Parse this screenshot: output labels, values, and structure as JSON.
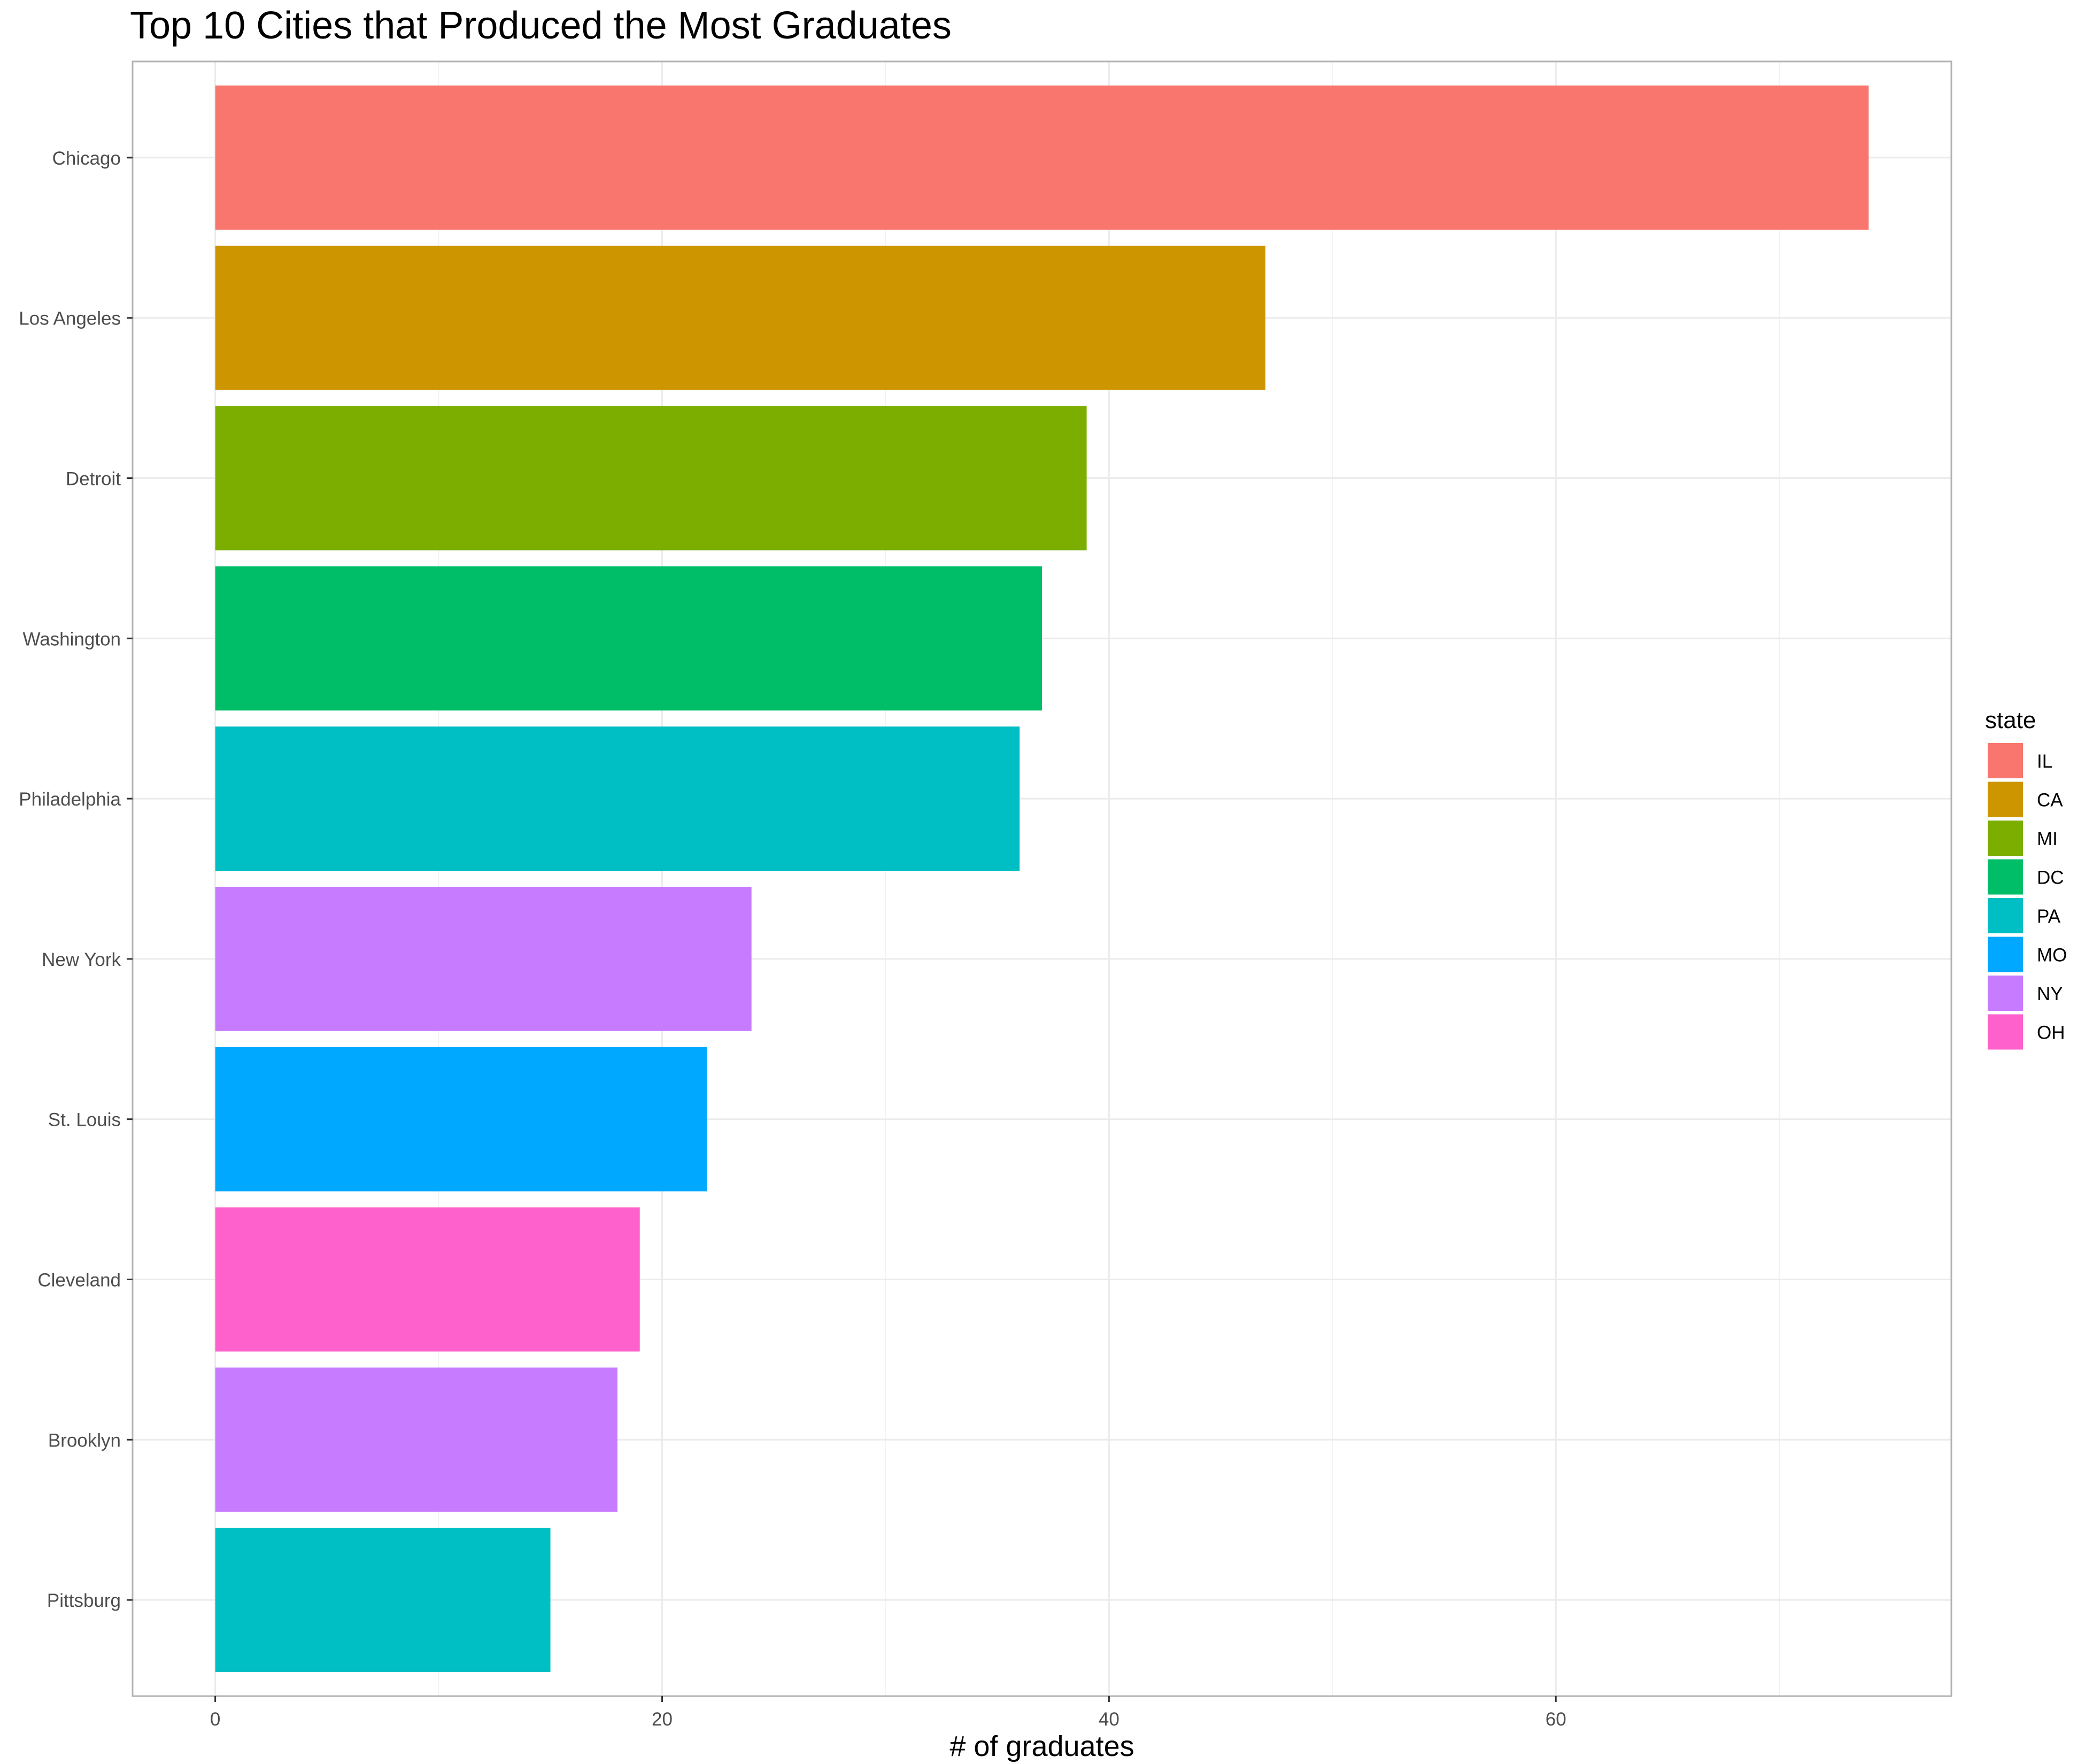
{
  "chart_data": {
    "type": "bar",
    "orientation": "horizontal",
    "title": "Top 10 Cities that Produced the Most Graduates",
    "xlabel": "# of graduates",
    "ylabel": "",
    "xlim": [
      -3.7,
      77.7
    ],
    "xticks": [
      0,
      20,
      40,
      60
    ],
    "grid": true,
    "legend_position": "right",
    "legend_title": "state",
    "categories": [
      "Chicago",
      "Los Angeles",
      "Detroit",
      "Washington",
      "Philadelphia",
      "New York",
      "St. Louis",
      "Cleveland",
      "Brooklyn",
      "Pittsburg"
    ],
    "values": [
      74,
      47,
      39,
      37,
      36,
      24,
      22,
      19,
      18,
      15
    ],
    "groups": [
      "IL",
      "CA",
      "MI",
      "DC",
      "PA",
      "NY",
      "MO",
      "OH",
      "NY",
      "PA"
    ],
    "legend": [
      {
        "label": "IL",
        "color": "#F8766D"
      },
      {
        "label": "CA",
        "color": "#CD9600"
      },
      {
        "label": "MI",
        "color": "#7CAE00"
      },
      {
        "label": "DC",
        "color": "#00BE67"
      },
      {
        "label": "PA",
        "color": "#00BFC4"
      },
      {
        "label": "MO",
        "color": "#00A9FF"
      },
      {
        "label": "NY",
        "color": "#C77CFF"
      },
      {
        "label": "OH",
        "color": "#FF61CC"
      }
    ]
  }
}
